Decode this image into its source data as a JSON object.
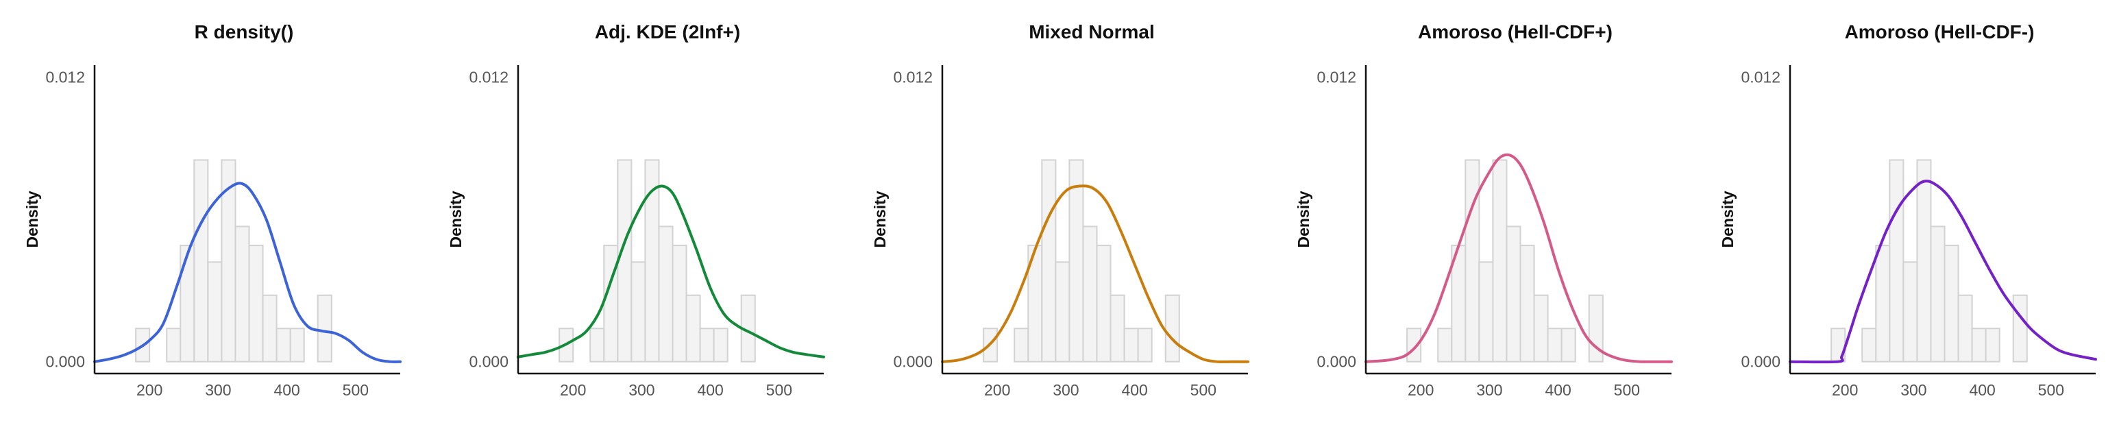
{
  "figure": {
    "background": "#ffffff"
  },
  "chart_data": [
    {
      "type": "line",
      "title": "R density()",
      "ylabel": "Density",
      "xlabel": "",
      "xlim": [
        120,
        565
      ],
      "ylim": [
        -0.0005,
        0.0125
      ],
      "x_ticks": [
        200,
        300,
        400,
        500
      ],
      "y_ticks": [
        0.0,
        0.012
      ],
      "y_tick_labels": [
        "0.000",
        "0.012"
      ],
      "histogram": {
        "bin_edges": [
          180,
          200,
          225,
          245,
          265,
          285,
          305,
          325,
          345,
          365,
          385,
          405,
          425,
          445,
          465,
          485,
          505
        ],
        "densities": [
          0.0014,
          0,
          0.0014,
          0.0049,
          0.0085,
          0.0042,
          0.0085,
          0.0057,
          0.0049,
          0.0028,
          0.0014,
          0.0014,
          0,
          0.0028,
          0,
          0
        ],
        "fill": "#f3f3f3",
        "stroke": "#d2d2d2"
      },
      "series": [
        {
          "color": "#3c63d8",
          "x": [
            120,
            140,
            160,
            180,
            200,
            220,
            240,
            260,
            280,
            300,
            320,
            335,
            350,
            370,
            390,
            410,
            430,
            450,
            470,
            490,
            510,
            530,
            550,
            565
          ],
          "y": [
            0.0,
            0.0001,
            0.00025,
            0.0005,
            0.0009,
            0.0016,
            0.0032,
            0.0049,
            0.0061,
            0.0069,
            0.0074,
            0.0075,
            0.0071,
            0.006,
            0.0042,
            0.0024,
            0.0015,
            0.0013,
            0.0012,
            0.0009,
            0.0004,
            0.0001,
            0.0,
            0.0
          ]
        }
      ]
    },
    {
      "type": "line",
      "title": "Adj. KDE (2Inf+)",
      "ylabel": "Density",
      "xlabel": "",
      "xlim": [
        120,
        565
      ],
      "ylim": [
        -0.0005,
        0.0125
      ],
      "x_ticks": [
        200,
        300,
        400,
        500
      ],
      "y_ticks": [
        0.0,
        0.012
      ],
      "y_tick_labels": [
        "0.000",
        "0.012"
      ],
      "histogram": {
        "bin_edges": [
          180,
          200,
          225,
          245,
          265,
          285,
          305,
          325,
          345,
          365,
          385,
          405,
          425,
          445,
          465,
          485,
          505
        ],
        "densities": [
          0.0014,
          0,
          0.0014,
          0.0049,
          0.0085,
          0.0042,
          0.0085,
          0.0057,
          0.0049,
          0.0028,
          0.0014,
          0.0014,
          0,
          0.0028,
          0,
          0
        ],
        "fill": "#f3f3f3",
        "stroke": "#d2d2d2"
      },
      "series": [
        {
          "color": "#138a3a",
          "x": [
            120,
            140,
            160,
            180,
            200,
            220,
            240,
            260,
            280,
            300,
            315,
            330,
            345,
            360,
            380,
            400,
            420,
            440,
            460,
            480,
            500,
            520,
            540,
            565
          ],
          "y": [
            0.0002,
            0.0003,
            0.0004,
            0.0006,
            0.0009,
            0.0013,
            0.0022,
            0.0038,
            0.0054,
            0.0066,
            0.0072,
            0.0074,
            0.0071,
            0.0062,
            0.0047,
            0.0031,
            0.002,
            0.0015,
            0.0012,
            0.0009,
            0.0006,
            0.0004,
            0.0003,
            0.0002
          ]
        }
      ]
    },
    {
      "type": "line",
      "title": "Mixed Normal",
      "ylabel": "Density",
      "xlabel": "",
      "xlim": [
        120,
        565
      ],
      "ylim": [
        -0.0005,
        0.0125
      ],
      "x_ticks": [
        200,
        300,
        400,
        500
      ],
      "y_ticks": [
        0.0,
        0.012
      ],
      "y_tick_labels": [
        "0.000",
        "0.012"
      ],
      "histogram": {
        "bin_edges": [
          180,
          200,
          225,
          245,
          265,
          285,
          305,
          325,
          345,
          365,
          385,
          405,
          425,
          445,
          465,
          485,
          505
        ],
        "densities": [
          0.0014,
          0,
          0.0014,
          0.0049,
          0.0085,
          0.0042,
          0.0085,
          0.0057,
          0.0049,
          0.0028,
          0.0014,
          0.0014,
          0,
          0.0028,
          0,
          0
        ],
        "fill": "#f3f3f3",
        "stroke": "#d2d2d2"
      },
      "series": [
        {
          "color": "#c87d0c",
          "x": [
            120,
            140,
            160,
            180,
            200,
            220,
            240,
            260,
            280,
            300,
            320,
            340,
            360,
            380,
            400,
            420,
            440,
            460,
            480,
            500,
            520,
            540,
            565
          ],
          "y": [
            0.0,
            5e-05,
            0.0002,
            0.0005,
            0.0011,
            0.0021,
            0.0035,
            0.0051,
            0.0064,
            0.0072,
            0.0074,
            0.0073,
            0.0067,
            0.0055,
            0.0041,
            0.0027,
            0.0015,
            0.0008,
            0.0004,
            0.0001,
            0.0,
            0.0,
            0.0
          ]
        }
      ]
    },
    {
      "type": "line",
      "title": "Amoroso (Hell-CDF+)",
      "ylabel": "Density",
      "xlabel": "",
      "xlim": [
        120,
        565
      ],
      "ylim": [
        -0.0005,
        0.0125
      ],
      "x_ticks": [
        200,
        300,
        400,
        500
      ],
      "y_ticks": [
        0.0,
        0.012
      ],
      "y_tick_labels": [
        "0.000",
        "0.012"
      ],
      "histogram": {
        "bin_edges": [
          180,
          200,
          225,
          245,
          265,
          285,
          305,
          325,
          345,
          365,
          385,
          405,
          425,
          445,
          465,
          485,
          505
        ],
        "densities": [
          0.0014,
          0,
          0.0014,
          0.0049,
          0.0085,
          0.0042,
          0.0085,
          0.0057,
          0.0049,
          0.0028,
          0.0014,
          0.0014,
          0,
          0.0028,
          0,
          0
        ],
        "fill": "#f3f3f3",
        "stroke": "#d2d2d2"
      },
      "series": [
        {
          "color": "#d45a8a",
          "x": [
            120,
            140,
            160,
            180,
            200,
            220,
            240,
            260,
            280,
            300,
            315,
            330,
            345,
            360,
            380,
            400,
            420,
            440,
            460,
            480,
            500,
            520,
            540,
            565
          ],
          "y": [
            0.0,
            3e-05,
            0.0001,
            0.0003,
            0.0009,
            0.002,
            0.0036,
            0.0053,
            0.0069,
            0.008,
            0.0086,
            0.0087,
            0.0083,
            0.0074,
            0.0058,
            0.0039,
            0.0023,
            0.0011,
            0.0005,
            0.0002,
            5e-05,
            0.0,
            0.0,
            0.0
          ]
        }
      ]
    },
    {
      "type": "line",
      "title": "Amoroso (Hell-CDF-)",
      "ylabel": "Density",
      "xlabel": "",
      "xlim": [
        120,
        565
      ],
      "ylim": [
        -0.0005,
        0.0125
      ],
      "x_ticks": [
        200,
        300,
        400,
        500
      ],
      "y_ticks": [
        0.0,
        0.012
      ],
      "y_tick_labels": [
        "0.000",
        "0.012"
      ],
      "histogram": {
        "bin_edges": [
          180,
          200,
          225,
          245,
          265,
          285,
          305,
          325,
          345,
          365,
          385,
          405,
          425,
          445,
          465,
          485,
          505
        ],
        "densities": [
          0.0014,
          0,
          0.0014,
          0.0049,
          0.0085,
          0.0042,
          0.0085,
          0.0057,
          0.0049,
          0.0028,
          0.0014,
          0.0014,
          0,
          0.0028,
          0,
          0
        ],
        "fill": "#f3f3f3",
        "stroke": "#d2d2d2"
      },
      "series": [
        {
          "color": "#7421c7",
          "x": [
            120,
            190,
            195,
            200,
            210,
            220,
            240,
            260,
            280,
            300,
            315,
            330,
            350,
            370,
            390,
            410,
            430,
            450,
            470,
            490,
            510,
            530,
            565
          ],
          "y": [
            0.0,
            0.0,
            0.0002,
            0.0006,
            0.0015,
            0.0024,
            0.004,
            0.0055,
            0.0066,
            0.0073,
            0.0076,
            0.0075,
            0.007,
            0.0061,
            0.005,
            0.0039,
            0.0029,
            0.0021,
            0.0014,
            0.0009,
            0.0005,
            0.0003,
            0.0001
          ]
        }
      ]
    }
  ]
}
